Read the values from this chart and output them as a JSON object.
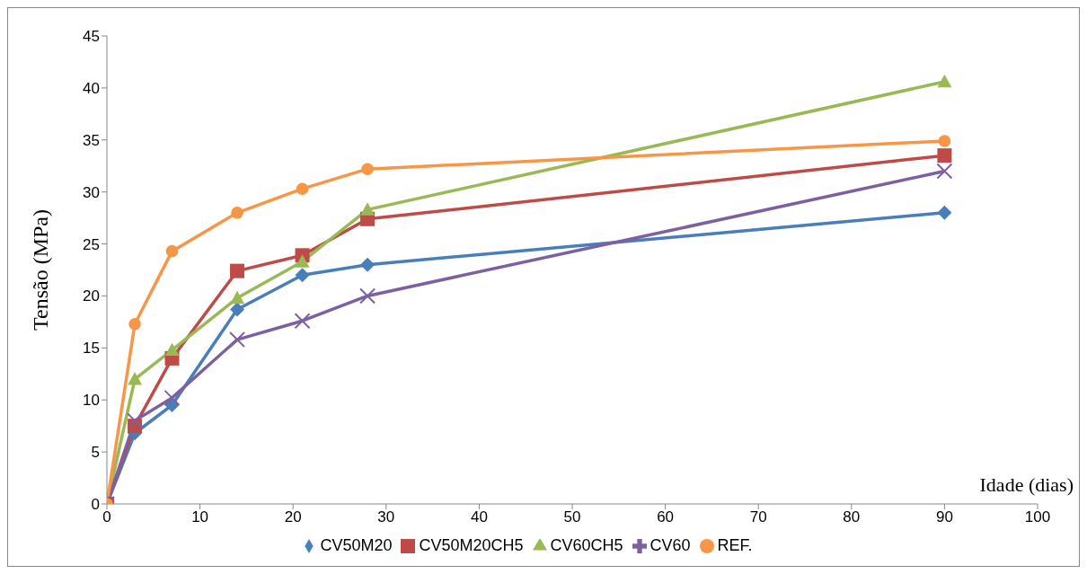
{
  "chart_data": {
    "type": "line",
    "xlabel": "Idade (dias)",
    "ylabel": "Tensão (MPa)",
    "x": [
      0,
      3,
      7,
      14,
      21,
      28,
      90
    ],
    "xlim": [
      0,
      100
    ],
    "xticks": [
      0,
      10,
      20,
      30,
      40,
      50,
      60,
      70,
      80,
      90,
      100
    ],
    "ylim": [
      0,
      45
    ],
    "yticks": [
      0,
      5,
      10,
      15,
      20,
      25,
      30,
      35,
      40,
      45
    ],
    "grid": false,
    "legend": "bottom",
    "series": [
      {
        "name": "CV50M20",
        "color": "#4a7ebb",
        "marker": "diamond",
        "values": [
          0,
          6.8,
          9.5,
          18.7,
          22,
          23,
          28
        ]
      },
      {
        "name": "CV50M20CH5",
        "color": "#be4b48",
        "marker": "square",
        "values": [
          0,
          7.5,
          14,
          22.4,
          23.9,
          27.4,
          33.5
        ]
      },
      {
        "name": "CV60CH5",
        "color": "#98b954",
        "marker": "triangle",
        "values": [
          0,
          12,
          14.8,
          19.8,
          23.3,
          28.3,
          40.6
        ]
      },
      {
        "name": "CV60",
        "color": "#7d60a0",
        "marker": "cross",
        "values": [
          0,
          8,
          10.2,
          15.8,
          17.6,
          20,
          32
        ]
      },
      {
        "name": "REF.",
        "color": "#f79646",
        "marker": "circle",
        "values": [
          0,
          17.3,
          24.3,
          28,
          30.3,
          32.2,
          34.9
        ]
      }
    ]
  }
}
